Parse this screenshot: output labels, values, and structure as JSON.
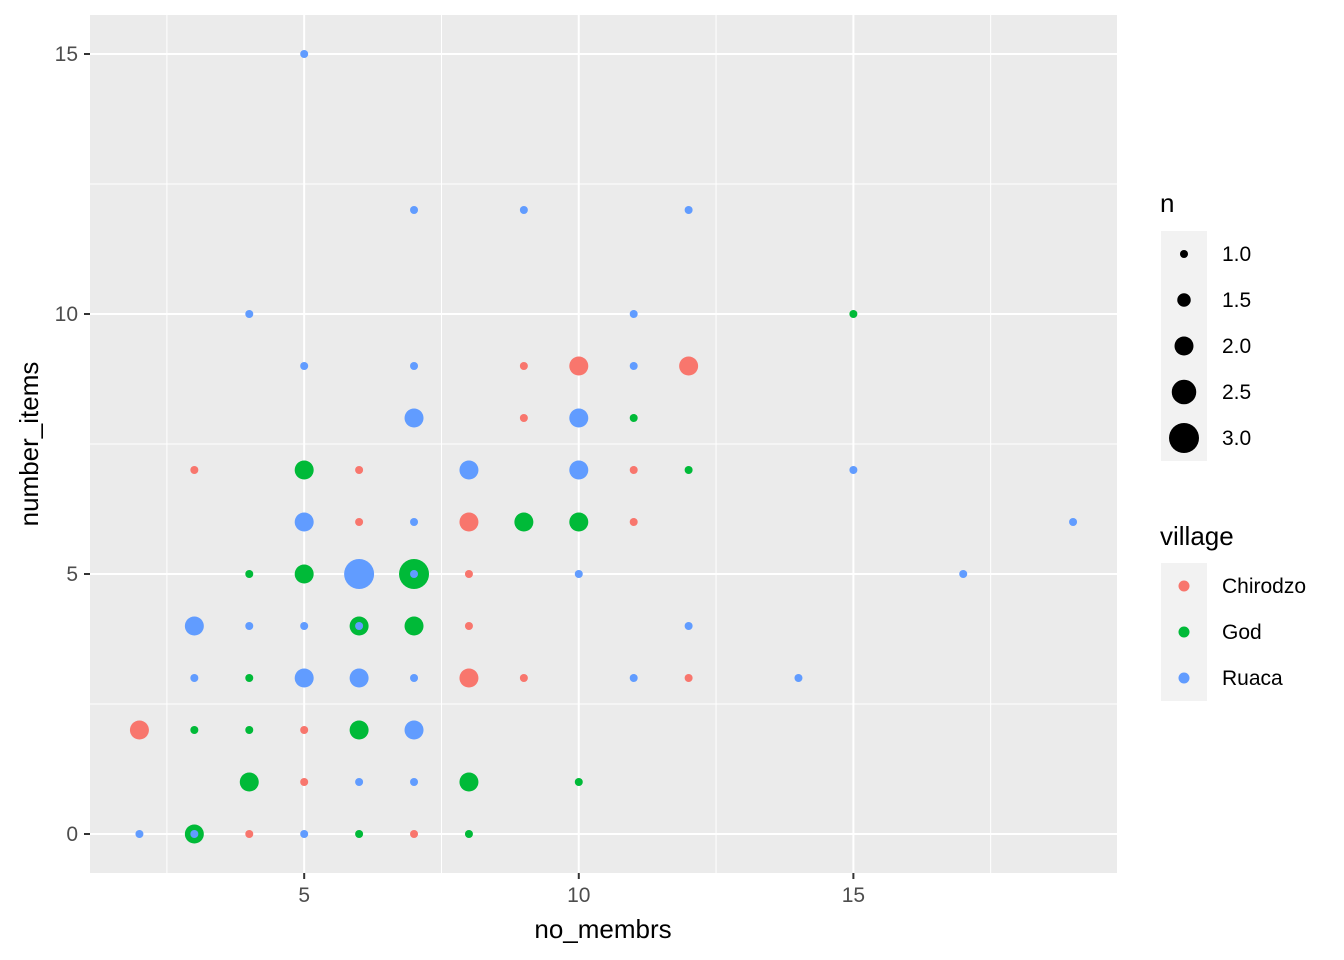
{
  "chart_data": {
    "type": "scatter",
    "title": "",
    "xlabel": "no_membrs",
    "ylabel": "number_items",
    "xlim": [
      1.1,
      19.8
    ],
    "ylim": [
      -0.75,
      15.75
    ],
    "x_ticks": [
      5,
      10,
      15
    ],
    "x_tick_labels": [
      "5",
      "10",
      "15"
    ],
    "y_ticks": [
      0,
      5,
      10,
      15
    ],
    "y_tick_labels": [
      "0",
      "5",
      "10",
      "15"
    ],
    "grid": true,
    "panel_background": "#ebebeb",
    "size_legend": {
      "title": "n",
      "values": [
        1.0,
        1.5,
        2.0,
        2.5,
        3.0
      ],
      "labels": [
        "1.0",
        "1.5",
        "2.0",
        "2.5",
        "3.0"
      ],
      "placement": "right"
    },
    "color_legend": {
      "title": "village",
      "placement": "right"
    },
    "series": [
      {
        "name": "Chirodzo",
        "color": "#F8766D",
        "points": [
          {
            "x": 2,
            "y": 2,
            "n": 2
          },
          {
            "x": 3,
            "y": 7,
            "n": 1
          },
          {
            "x": 4,
            "y": 0,
            "n": 1
          },
          {
            "x": 5,
            "y": 2,
            "n": 1
          },
          {
            "x": 5,
            "y": 1,
            "n": 1
          },
          {
            "x": 6,
            "y": 7,
            "n": 1
          },
          {
            "x": 6,
            "y": 6,
            "n": 1
          },
          {
            "x": 7,
            "y": 0,
            "n": 1
          },
          {
            "x": 8,
            "y": 6,
            "n": 2
          },
          {
            "x": 8,
            "y": 5,
            "n": 1
          },
          {
            "x": 8,
            "y": 4,
            "n": 1
          },
          {
            "x": 8,
            "y": 3,
            "n": 2
          },
          {
            "x": 9,
            "y": 9,
            "n": 1
          },
          {
            "x": 9,
            "y": 8,
            "n": 1
          },
          {
            "x": 9,
            "y": 3,
            "n": 1
          },
          {
            "x": 10,
            "y": 9,
            "n": 2
          },
          {
            "x": 11,
            "y": 7,
            "n": 1
          },
          {
            "x": 11,
            "y": 6,
            "n": 1
          },
          {
            "x": 12,
            "y": 9,
            "n": 2
          },
          {
            "x": 12,
            "y": 3,
            "n": 1
          }
        ]
      },
      {
        "name": "God",
        "color": "#00BA38",
        "points": [
          {
            "x": 3,
            "y": 2,
            "n": 1
          },
          {
            "x": 3,
            "y": 0,
            "n": 2
          },
          {
            "x": 4,
            "y": 5,
            "n": 1
          },
          {
            "x": 4,
            "y": 3,
            "n": 1
          },
          {
            "x": 4,
            "y": 2,
            "n": 1
          },
          {
            "x": 4,
            "y": 1,
            "n": 2
          },
          {
            "x": 5,
            "y": 7,
            "n": 2
          },
          {
            "x": 5,
            "y": 5,
            "n": 2
          },
          {
            "x": 6,
            "y": 4,
            "n": 2
          },
          {
            "x": 6,
            "y": 2,
            "n": 2
          },
          {
            "x": 6,
            "y": 0,
            "n": 1
          },
          {
            "x": 7,
            "y": 5,
            "n": 3
          },
          {
            "x": 7,
            "y": 4,
            "n": 2
          },
          {
            "x": 8,
            "y": 1,
            "n": 2
          },
          {
            "x": 8,
            "y": 0,
            "n": 1
          },
          {
            "x": 9,
            "y": 6,
            "n": 2
          },
          {
            "x": 10,
            "y": 6,
            "n": 2
          },
          {
            "x": 10,
            "y": 1,
            "n": 1
          },
          {
            "x": 11,
            "y": 8,
            "n": 1
          },
          {
            "x": 12,
            "y": 7,
            "n": 1
          },
          {
            "x": 15,
            "y": 10,
            "n": 1
          }
        ]
      },
      {
        "name": "Ruaca",
        "color": "#619CFF",
        "points": [
          {
            "x": 2,
            "y": 0,
            "n": 1
          },
          {
            "x": 3,
            "y": 4,
            "n": 2
          },
          {
            "x": 3,
            "y": 3,
            "n": 1
          },
          {
            "x": 3,
            "y": 0,
            "n": 1
          },
          {
            "x": 4,
            "y": 10,
            "n": 1
          },
          {
            "x": 4,
            "y": 4,
            "n": 1
          },
          {
            "x": 5,
            "y": 15,
            "n": 1
          },
          {
            "x": 5,
            "y": 9,
            "n": 1
          },
          {
            "x": 5,
            "y": 6,
            "n": 2
          },
          {
            "x": 5,
            "y": 4,
            "n": 1
          },
          {
            "x": 5,
            "y": 3,
            "n": 2
          },
          {
            "x": 5,
            "y": 0,
            "n": 1
          },
          {
            "x": 6,
            "y": 5,
            "n": 3
          },
          {
            "x": 6,
            "y": 4,
            "n": 1
          },
          {
            "x": 6,
            "y": 3,
            "n": 2
          },
          {
            "x": 6,
            "y": 1,
            "n": 1
          },
          {
            "x": 7,
            "y": 12,
            "n": 1
          },
          {
            "x": 7,
            "y": 9,
            "n": 1
          },
          {
            "x": 7,
            "y": 8,
            "n": 2
          },
          {
            "x": 7,
            "y": 6,
            "n": 1
          },
          {
            "x": 7,
            "y": 5,
            "n": 1
          },
          {
            "x": 7,
            "y": 3,
            "n": 1
          },
          {
            "x": 7,
            "y": 2,
            "n": 2
          },
          {
            "x": 7,
            "y": 1,
            "n": 1
          },
          {
            "x": 8,
            "y": 7,
            "n": 2
          },
          {
            "x": 9,
            "y": 12,
            "n": 1
          },
          {
            "x": 10,
            "y": 8,
            "n": 2
          },
          {
            "x": 10,
            "y": 7,
            "n": 2
          },
          {
            "x": 10,
            "y": 5,
            "n": 1
          },
          {
            "x": 11,
            "y": 10,
            "n": 1
          },
          {
            "x": 11,
            "y": 9,
            "n": 1
          },
          {
            "x": 11,
            "y": 3,
            "n": 1
          },
          {
            "x": 12,
            "y": 12,
            "n": 1
          },
          {
            "x": 12,
            "y": 4,
            "n": 1
          },
          {
            "x": 14,
            "y": 3,
            "n": 1
          },
          {
            "x": 15,
            "y": 7,
            "n": 1
          },
          {
            "x": 17,
            "y": 5,
            "n": 1
          },
          {
            "x": 19,
            "y": 6,
            "n": 1
          }
        ]
      }
    ]
  }
}
